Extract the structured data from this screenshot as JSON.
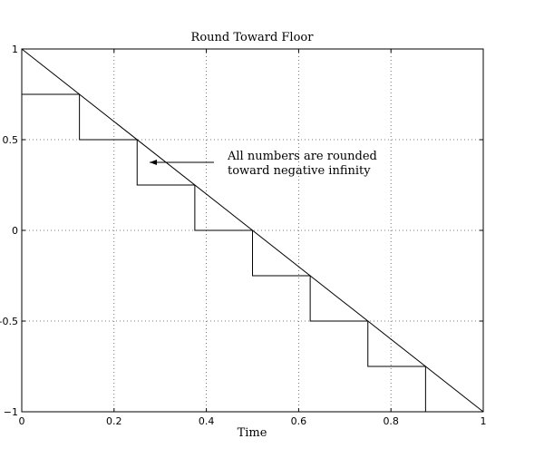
{
  "chart_data": {
    "type": "line",
    "title": "Round Toward Floor",
    "xlabel": "Time",
    "ylabel": "",
    "xlim": [
      0,
      1
    ],
    "ylim": [
      -1,
      1
    ],
    "grid": true,
    "x_ticks": [
      0,
      0.2,
      0.4,
      0.6,
      0.8,
      1
    ],
    "x_tick_labels": [
      "0",
      "0.2",
      "0.4",
      "0.6",
      "0.8",
      "1"
    ],
    "y_ticks": [
      -1,
      -0.5,
      0,
      0.5,
      1
    ],
    "y_tick_labels": [
      "−1",
      "-0.5",
      "0",
      "0.5",
      "1"
    ],
    "series": [
      {
        "style": "line",
        "x": [
          0,
          1
        ],
        "y": [
          1,
          -1
        ]
      },
      {
        "style": "step",
        "x": [
          0,
          0.125,
          0.25,
          0.375,
          0.5,
          0.625,
          0.75,
          0.875,
          1
        ],
        "y": [
          0.75,
          0.5,
          0.25,
          0,
          -0.25,
          -0.5,
          -0.75,
          -1,
          -1
        ]
      }
    ],
    "annotations": [
      {
        "lines": [
          "All numbers are rounded",
          "toward negative infinity"
        ],
        "arrow_to": [
          0.27,
          0.375
        ]
      }
    ]
  }
}
